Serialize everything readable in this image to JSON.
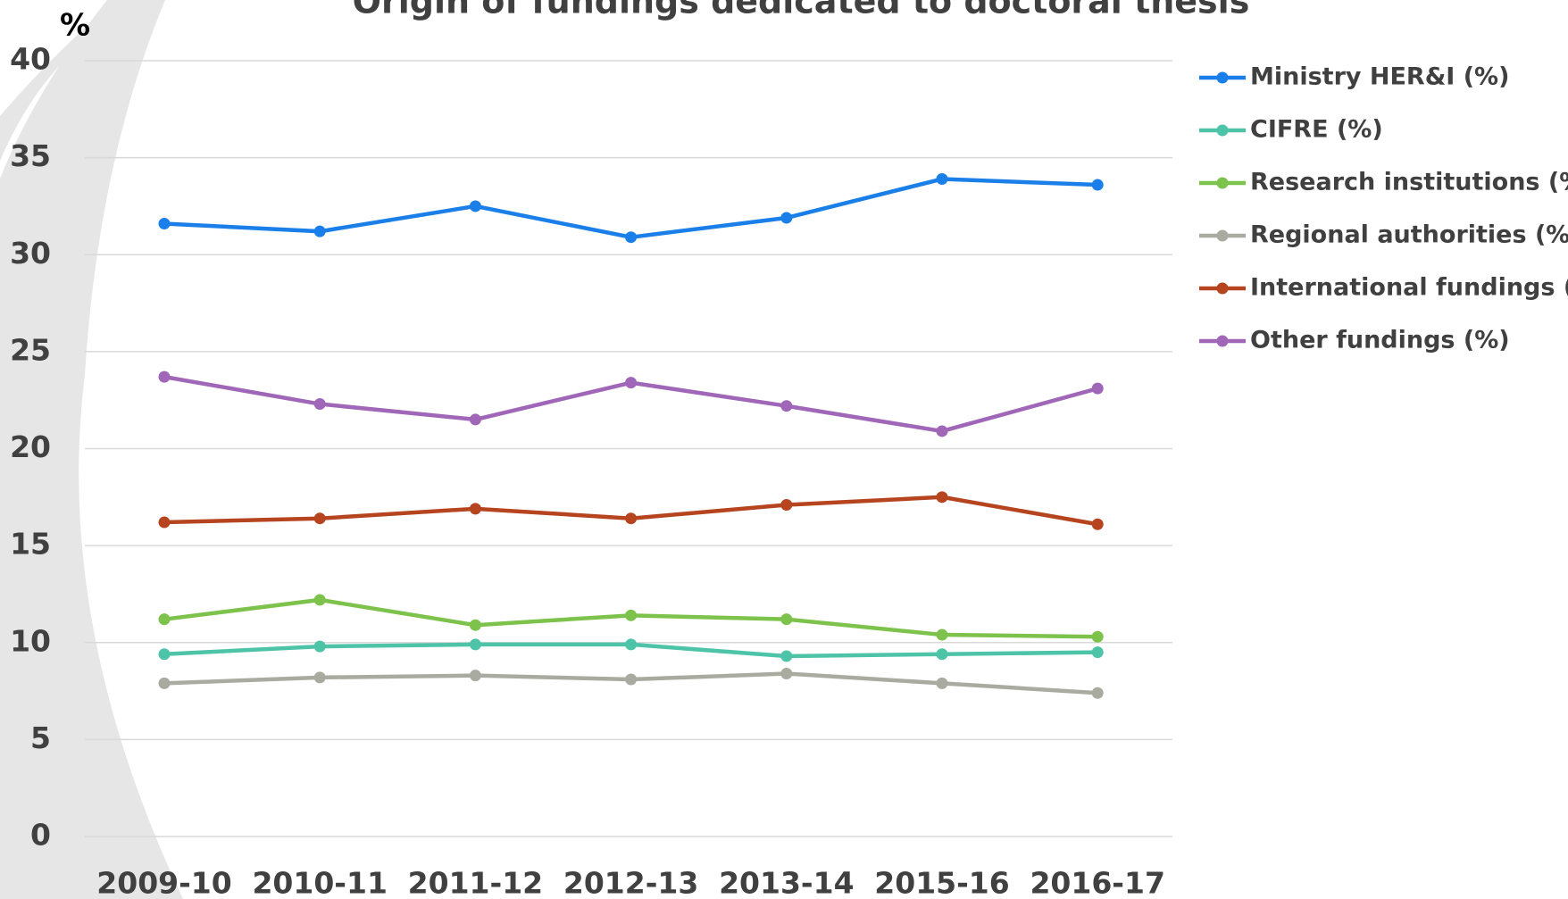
{
  "chart_data": {
    "type": "line",
    "title": "Origin of fundings dedicated to doctoral thesis",
    "ylabel": "%",
    "categories": [
      "2009-10",
      "2010-11",
      "2011-12",
      "2012-13",
      "2013-14",
      "2015-16",
      "2016-17"
    ],
    "series": [
      {
        "name": "Ministry HER&I (%)",
        "color": "#1a7fe8",
        "values": [
          31.6,
          31.2,
          32.5,
          30.9,
          31.9,
          33.9,
          33.6
        ]
      },
      {
        "name": "CIFRE  (%)",
        "color": "#4dc3a8",
        "values": [
          9.4,
          9.8,
          9.9,
          9.9,
          9.3,
          9.4,
          9.5
        ]
      },
      {
        "name": "Research institutions  (%)",
        "color": "#7dc24b",
        "values": [
          11.2,
          12.2,
          10.9,
          11.4,
          11.2,
          10.4,
          10.3
        ]
      },
      {
        "name": "Regional authorities  (%)",
        "color": "#a9aaa0",
        "values": [
          7.9,
          8.2,
          8.3,
          8.1,
          8.4,
          7.9,
          7.4
        ]
      },
      {
        "name": "International fundings  (%)",
        "color": "#b5441f",
        "values": [
          16.2,
          16.4,
          16.9,
          16.4,
          17.1,
          17.5,
          16.1
        ]
      },
      {
        "name": "Other fundings  (%)",
        "color": "#a066b8",
        "values": [
          23.7,
          22.3,
          21.5,
          23.4,
          22.2,
          20.9,
          23.1
        ]
      }
    ],
    "ylim": [
      0,
      40
    ],
    "yticks": [
      0,
      5,
      10,
      15,
      20,
      25,
      30,
      35,
      40
    ],
    "grid": true,
    "legend": "right"
  }
}
